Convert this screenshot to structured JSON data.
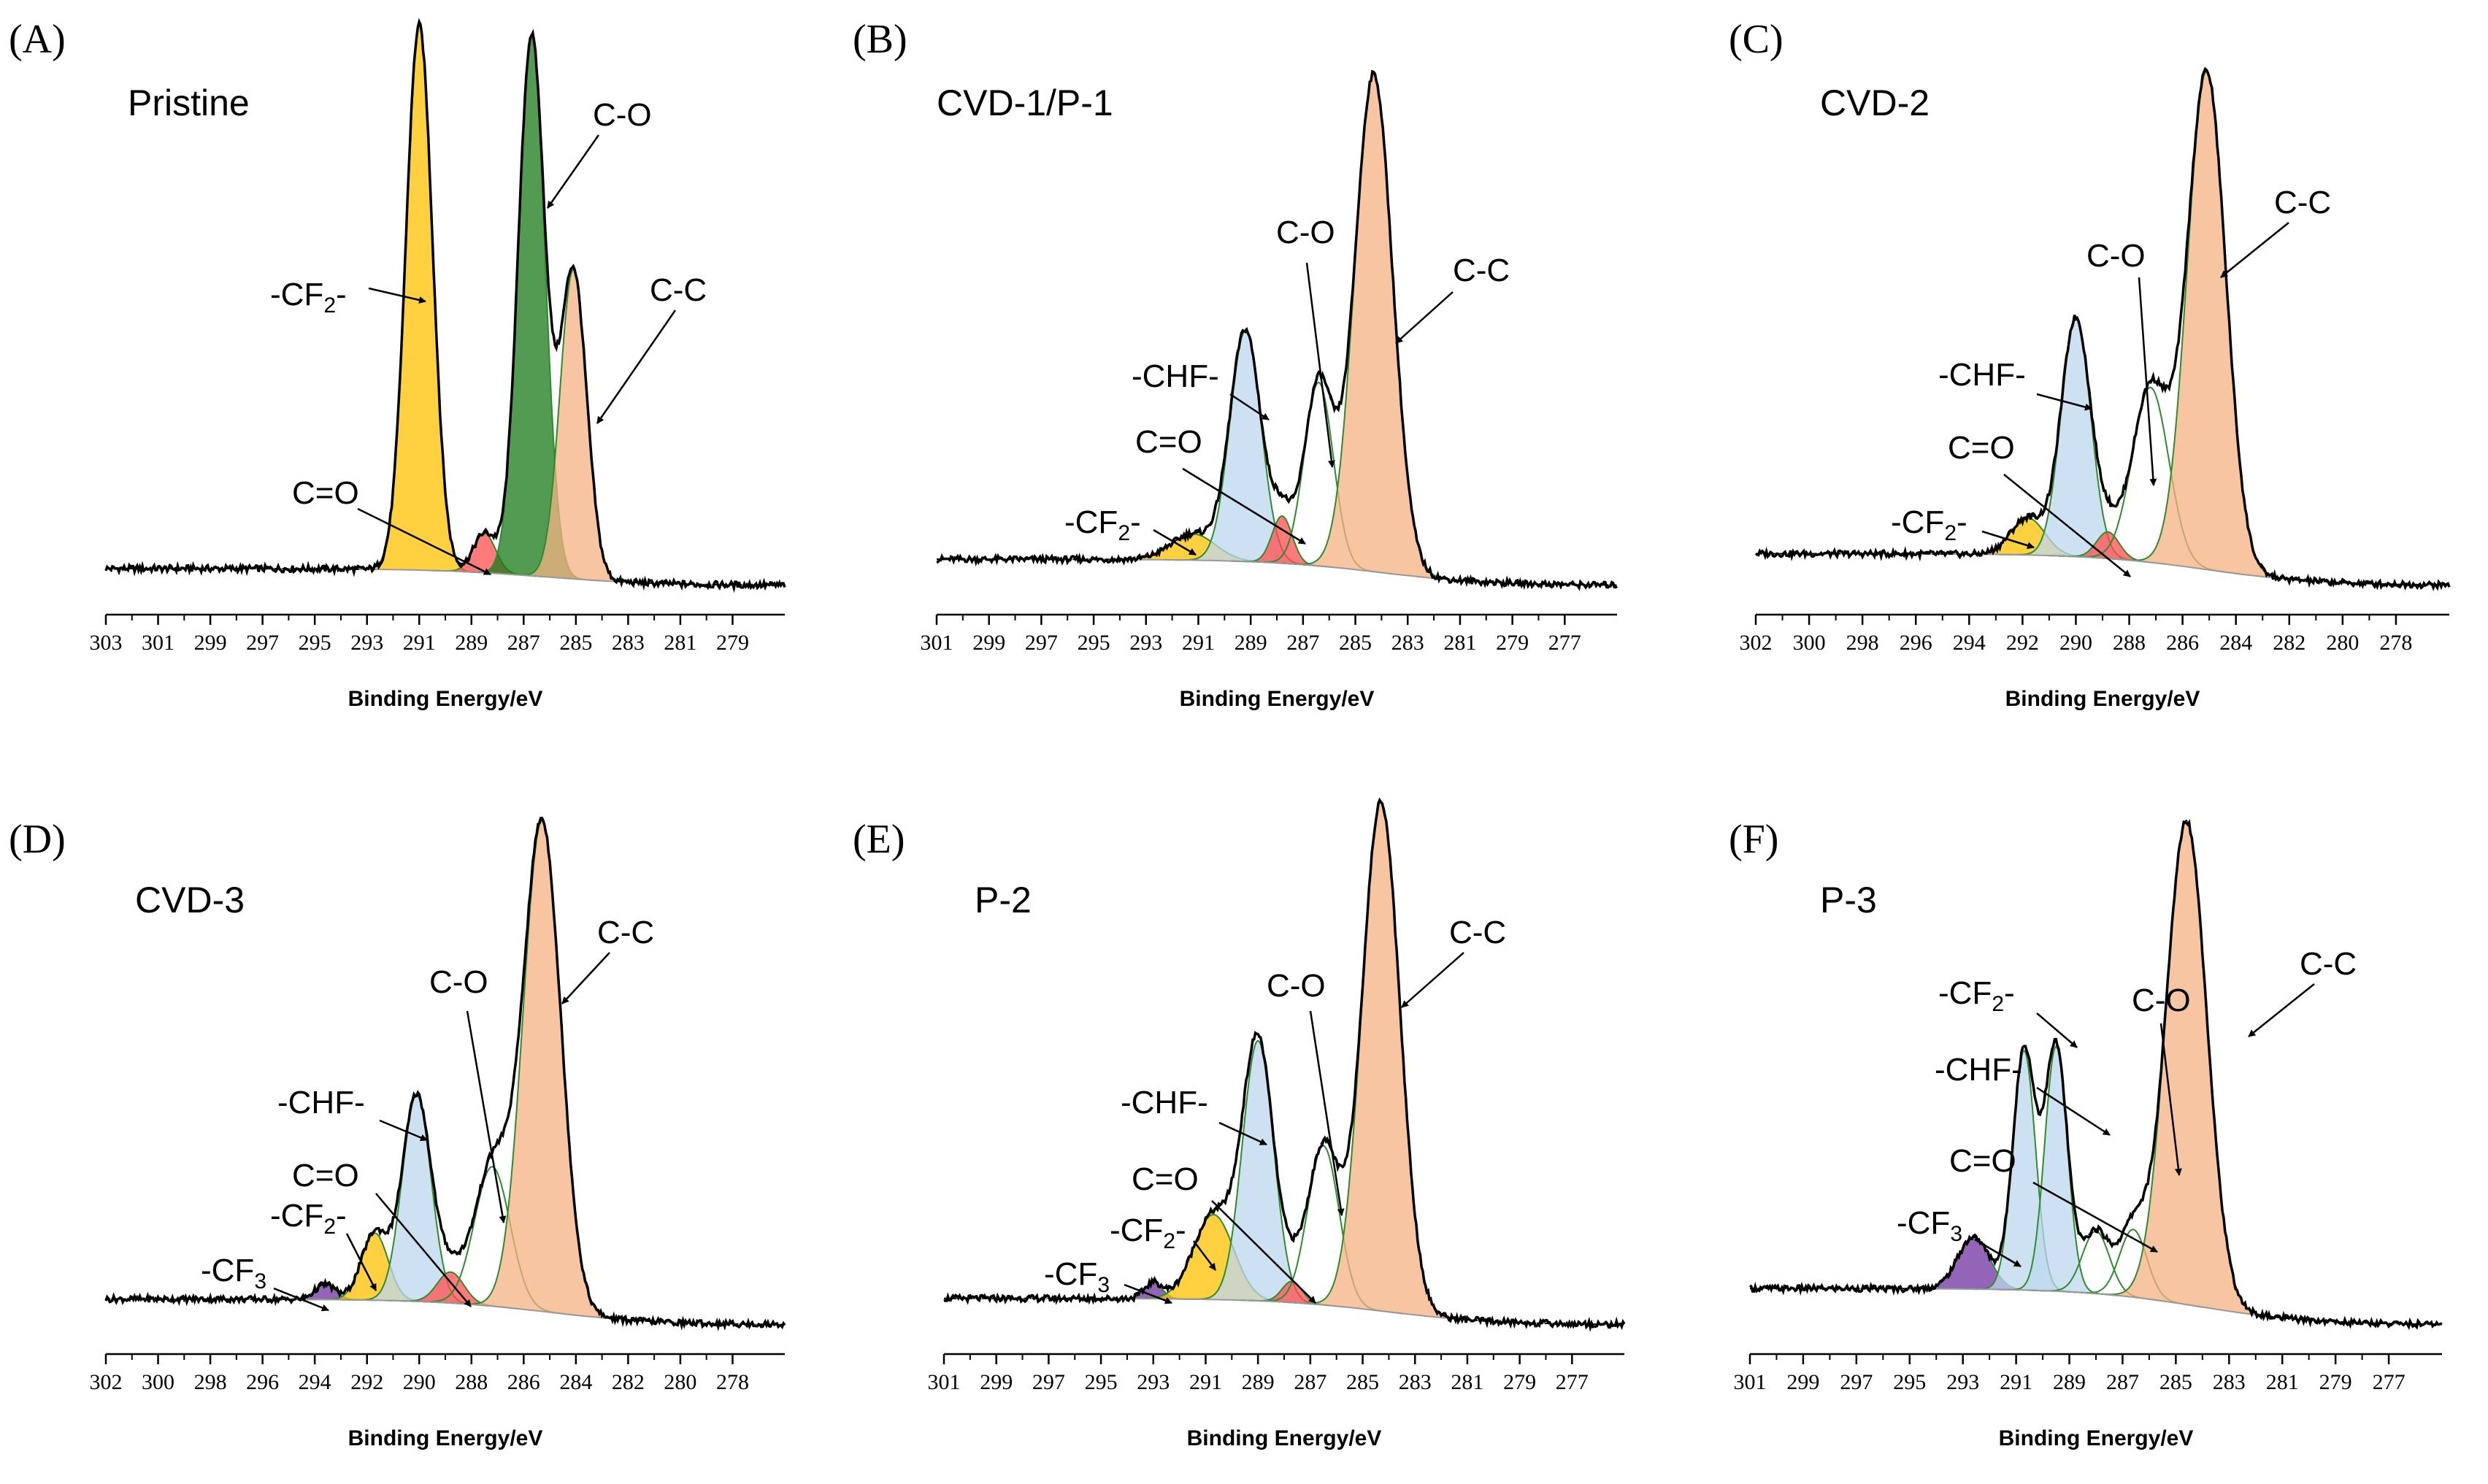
{
  "figure": {
    "x_axis_title": "Binding Energy/eV",
    "colors": {
      "c_c": "#f4b183",
      "c_o_pristine": "#1a7a1a",
      "c_o_fit": "#ffffff",
      "cf2": "#ffc000",
      "chf": "#bdd7ee",
      "c_eq_o": "#ff4d4d",
      "cf3": "#7030a0",
      "fit_line": "#2e8b2e",
      "spectrum": "#000000",
      "baseline": "#999999"
    }
  },
  "chart_data": [
    {
      "panel": "(A)",
      "sample": "Pristine",
      "type": "line",
      "xlabel": "Binding Energy/eV",
      "xlim": [
        303,
        277
      ],
      "x_ticks": [
        "303",
        "301",
        "299",
        "297",
        "295",
        "293",
        "291",
        "289",
        "287",
        "285",
        "283",
        "281",
        "279"
      ],
      "ylim": [
        0,
        1.0
      ],
      "background": {
        "high_be": 0.03,
        "low_be": 0.0
      },
      "components": [
        {
          "name": "-CF2-",
          "center": 291.0,
          "fwhm": 1.2,
          "height": 0.97,
          "color": "cf2"
        },
        {
          "name": "C=O",
          "center": 288.5,
          "fwhm": 1.0,
          "height": 0.07,
          "color": "c_eq_o"
        },
        {
          "name": "C-O",
          "center": 286.7,
          "fwhm": 1.2,
          "height": 0.96,
          "color": "c_o_pristine"
        },
        {
          "name": "C-C",
          "center": 285.1,
          "fwhm": 1.2,
          "height": 0.55,
          "color": "c_c"
        }
      ],
      "annotations": [
        {
          "label": "-CF",
          "sub": "2",
          "post": "-"
        },
        {
          "label": "C=O",
          "sub": "",
          "post": ""
        },
        {
          "label": "C-O",
          "sub": "",
          "post": ""
        },
        {
          "label": "C-C",
          "sub": "",
          "post": ""
        }
      ]
    },
    {
      "panel": "(B)",
      "sample": "CVD-1/P-1",
      "type": "line",
      "xlabel": "Binding Energy/eV",
      "xlim": [
        301,
        275
      ],
      "x_ticks": [
        "301",
        "299",
        "297",
        "295",
        "293",
        "291",
        "289",
        "287",
        "285",
        "283",
        "281",
        "279",
        "277"
      ],
      "ylim": [
        0,
        1.0
      ],
      "background": {
        "high_be": 0.05,
        "low_be": 0.0
      },
      "components": [
        {
          "name": "-CF2-",
          "center": 291.2,
          "fwhm": 2.0,
          "height": 0.05,
          "color": "cf2"
        },
        {
          "name": "-CHF-",
          "center": 289.2,
          "fwhm": 1.4,
          "height": 0.44,
          "color": "chf"
        },
        {
          "name": "C=O",
          "center": 287.8,
          "fwhm": 0.9,
          "height": 0.09,
          "color": "c_eq_o"
        },
        {
          "name": "C-O",
          "center": 286.4,
          "fwhm": 1.3,
          "height": 0.35,
          "color": "c_o_fit"
        },
        {
          "name": "C-C",
          "center": 284.3,
          "fwhm": 1.7,
          "height": 0.95,
          "color": "c_c"
        }
      ],
      "annotations": [
        {
          "label": "-CF",
          "sub": "2",
          "post": "-"
        },
        {
          "label": "C=O",
          "sub": "",
          "post": ""
        },
        {
          "label": "-CHF-",
          "sub": "",
          "post": ""
        },
        {
          "label": "C-O",
          "sub": "",
          "post": ""
        },
        {
          "label": "C-C",
          "sub": "",
          "post": ""
        }
      ]
    },
    {
      "panel": "(C)",
      "sample": "CVD-2",
      "type": "line",
      "xlabel": "Binding Energy/eV",
      "xlim": [
        302,
        276
      ],
      "x_ticks": [
        "302",
        "300",
        "298",
        "296",
        "294",
        "292",
        "290",
        "288",
        "286",
        "284",
        "282",
        "280",
        "278"
      ],
      "ylim": [
        0,
        1.0
      ],
      "background": {
        "high_be": 0.06,
        "low_be": 0.0
      },
      "components": [
        {
          "name": "-CF2-",
          "center": 291.8,
          "fwhm": 1.5,
          "height": 0.07,
          "color": "cf2"
        },
        {
          "name": "-CHF-",
          "center": 290.0,
          "fwhm": 1.3,
          "height": 0.45,
          "color": "chf"
        },
        {
          "name": "C=O",
          "center": 288.8,
          "fwhm": 1.0,
          "height": 0.05,
          "color": "c_eq_o"
        },
        {
          "name": "C-O",
          "center": 287.2,
          "fwhm": 1.6,
          "height": 0.33,
          "color": "c_o_fit"
        },
        {
          "name": "C-C",
          "center": 285.1,
          "fwhm": 1.7,
          "height": 0.94,
          "color": "c_c"
        }
      ],
      "annotations": [
        {
          "label": "-CF",
          "sub": "2",
          "post": "-"
        },
        {
          "label": "C=O",
          "sub": "",
          "post": ""
        },
        {
          "label": "-CHF-",
          "sub": "",
          "post": ""
        },
        {
          "label": "C-O",
          "sub": "",
          "post": ""
        },
        {
          "label": "C-C",
          "sub": "",
          "post": ""
        }
      ]
    },
    {
      "panel": "(D)",
      "sample": "CVD-3",
      "type": "line",
      "xlabel": "Binding Energy/eV",
      "xlim": [
        302,
        276
      ],
      "x_ticks": [
        "302",
        "300",
        "298",
        "296",
        "294",
        "292",
        "290",
        "288",
        "286",
        "284",
        "282",
        "280",
        "278"
      ],
      "ylim": [
        0,
        1.0
      ],
      "background": {
        "high_be": 0.05,
        "low_be": 0.0
      },
      "components": [
        {
          "name": "-CF3",
          "center": 293.6,
          "fwhm": 0.9,
          "height": 0.03,
          "color": "cf3"
        },
        {
          "name": "-CF2-",
          "center": 291.7,
          "fwhm": 1.2,
          "height": 0.13,
          "color": "cf2"
        },
        {
          "name": "-CHF-",
          "center": 290.1,
          "fwhm": 1.3,
          "height": 0.4,
          "color": "chf"
        },
        {
          "name": "C=O",
          "center": 288.8,
          "fwhm": 1.2,
          "height": 0.06,
          "color": "c_eq_o"
        },
        {
          "name": "C-O",
          "center": 287.2,
          "fwhm": 1.6,
          "height": 0.27,
          "color": "c_o_fit"
        },
        {
          "name": "C-C",
          "center": 285.3,
          "fwhm": 1.7,
          "height": 0.95,
          "color": "c_c"
        }
      ],
      "annotations": [
        {
          "label": "-CF",
          "sub": "3",
          "post": ""
        },
        {
          "label": "-CF",
          "sub": "2",
          "post": "-"
        },
        {
          "label": "C=O",
          "sub": "",
          "post": ""
        },
        {
          "label": "-CHF-",
          "sub": "",
          "post": ""
        },
        {
          "label": "C-O",
          "sub": "",
          "post": ""
        },
        {
          "label": "C-C",
          "sub": "",
          "post": ""
        }
      ]
    },
    {
      "panel": "(E)",
      "sample": "P-2",
      "type": "line",
      "xlabel": "Binding Energy/eV",
      "xlim": [
        301,
        275
      ],
      "x_ticks": [
        "301",
        "299",
        "297",
        "295",
        "293",
        "291",
        "289",
        "287",
        "285",
        "283",
        "281",
        "279",
        "277"
      ],
      "ylim": [
        0,
        1.0
      ],
      "background": {
        "high_be": 0.05,
        "low_be": 0.0
      },
      "components": [
        {
          "name": "-CF3",
          "center": 293.0,
          "fwhm": 0.8,
          "height": 0.03,
          "color": "cf3"
        },
        {
          "name": "-CF2-",
          "center": 290.7,
          "fwhm": 1.8,
          "height": 0.16,
          "color": "cf2"
        },
        {
          "name": "-CHF-",
          "center": 289.0,
          "fwhm": 1.4,
          "height": 0.49,
          "color": "chf"
        },
        {
          "name": "C=O",
          "center": 287.7,
          "fwhm": 0.9,
          "height": 0.04,
          "color": "c_eq_o"
        },
        {
          "name": "C-O",
          "center": 286.5,
          "fwhm": 1.4,
          "height": 0.3,
          "color": "c_o_fit"
        },
        {
          "name": "C-C",
          "center": 284.3,
          "fwhm": 1.7,
          "height": 0.96,
          "color": "c_c"
        }
      ],
      "annotations": [
        {
          "label": "-CF",
          "sub": "3",
          "post": ""
        },
        {
          "label": "-CF",
          "sub": "2",
          "post": "-"
        },
        {
          "label": "C=O",
          "sub": "",
          "post": ""
        },
        {
          "label": "-CHF-",
          "sub": "",
          "post": ""
        },
        {
          "label": "C-O",
          "sub": "",
          "post": ""
        },
        {
          "label": "C-C",
          "sub": "",
          "post": ""
        }
      ]
    },
    {
      "panel": "(F)",
      "sample": "P-3",
      "type": "line",
      "xlabel": "Binding Energy/eV",
      "xlim": [
        301,
        275
      ],
      "x_ticks": [
        "301",
        "299",
        "297",
        "295",
        "293",
        "291",
        "289",
        "287",
        "285",
        "283",
        "281",
        "279",
        "277"
      ],
      "ylim": [
        0,
        1.0
      ],
      "background": {
        "high_be": 0.07,
        "low_be": 0.0
      },
      "components": [
        {
          "name": "-CF3",
          "center": 292.6,
          "fwhm": 1.4,
          "height": 0.1,
          "color": "cf3"
        },
        {
          "name": "-CF2-",
          "center": 290.7,
          "fwhm": 1.0,
          "height": 0.46,
          "color": "chf"
        },
        {
          "name": "-CHF-",
          "center": 289.5,
          "fwhm": 1.0,
          "height": 0.47,
          "color": "chf"
        },
        {
          "name": "C=O",
          "center": 288.0,
          "fwhm": 1.2,
          "height": 0.12,
          "color": "c_o_fit"
        },
        {
          "name": "C-O",
          "center": 286.6,
          "fwhm": 1.2,
          "height": 0.13,
          "color": "c_o_fit"
        },
        {
          "name": "C-C",
          "center": 284.6,
          "fwhm": 1.8,
          "height": 0.93,
          "color": "c_c"
        }
      ],
      "annotations": [
        {
          "label": "-CF",
          "sub": "3",
          "post": ""
        },
        {
          "label": "C=O",
          "sub": "",
          "post": ""
        },
        {
          "label": "-CHF-",
          "sub": "",
          "post": ""
        },
        {
          "label": "-CF",
          "sub": "2",
          "post": "-"
        },
        {
          "label": "C-O",
          "sub": "",
          "post": ""
        },
        {
          "label": "C-C",
          "sub": "",
          "post": ""
        }
      ]
    }
  ]
}
